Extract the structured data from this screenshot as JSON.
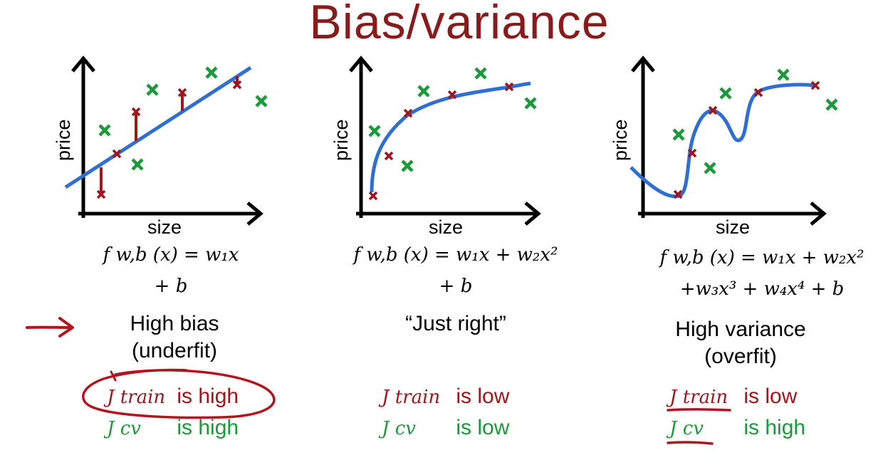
{
  "title": "Bias/variance",
  "panels": [
    {
      "xlabel": "size",
      "ylabel": "price",
      "formula_line1": "f w,b (x) = w₁x",
      "formula_line2": "+ b",
      "caption_line1": "High bias",
      "caption_line2": "(underfit)",
      "jtrain_symbol": "J train",
      "jtrain_text": "is high",
      "jcv_symbol": "J cv",
      "jcv_text": "is high"
    },
    {
      "xlabel": "size",
      "ylabel": "price",
      "formula_line1": "f w,b (x) = w₁x + w₂x²",
      "formula_line2": "+ b",
      "caption_line1": "“Just right”",
      "jtrain_symbol": "J train",
      "jtrain_text": "is low",
      "jcv_symbol": "J cv",
      "jcv_text": "is low"
    },
    {
      "xlabel": "size",
      "ylabel": "price",
      "formula_line1": "f w,b (x) = w₁x + w₂x²",
      "formula_line2": "+w₃x³ + w₄x⁴ + b",
      "caption_line1": "High variance",
      "caption_line2": "(overfit)",
      "jtrain_symbol": "J train",
      "jtrain_text": "is low",
      "jcv_symbol": "J cv",
      "jcv_text": "is high"
    }
  ],
  "colors": {
    "title": "#8b1a1a",
    "train": "#a1151b",
    "cv": "#1a9a3a",
    "fit_curve": "#2e6fd6",
    "annotation": "#b3141e"
  }
}
